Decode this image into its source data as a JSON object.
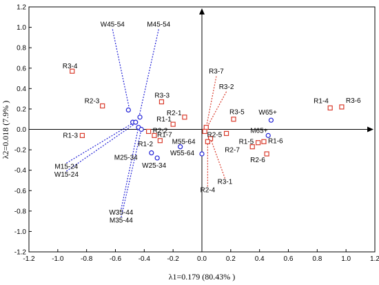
{
  "chart_data": {
    "type": "scatter",
    "title": "",
    "xlabel": "λ1=0.179 (80.43% )",
    "ylabel": "λ2=0.018 (7.9% )",
    "xlim": [
      -1.2,
      1.2
    ],
    "ylim": [
      -1.2,
      1.2
    ],
    "x_ticks": [
      "-1.2",
      "-1.0",
      "-0.8",
      "-0.6",
      "-0.4",
      "-0.2",
      "0.0",
      "0.2",
      "0.4",
      "0.6",
      "0.8",
      "1.0",
      "1.2"
    ],
    "y_ticks": [
      "-1.2",
      "-1.0",
      "-0.8",
      "-0.6",
      "-0.4",
      "-0.2",
      "0.0",
      "0.2",
      "0.4",
      "0.6",
      "0.8",
      "1.0",
      "1.2"
    ],
    "grid": false,
    "series": [
      {
        "marker": "circle",
        "color": "#1f1fd6",
        "points": [
          {
            "label": "W45-54",
            "x": -0.51,
            "y": 0.19
          },
          {
            "label": "M45-54",
            "x": -0.43,
            "y": 0.12
          },
          {
            "label": "M15-24",
            "x": -0.48,
            "y": 0.07
          },
          {
            "label": "W15-24",
            "x": -0.46,
            "y": 0.07
          },
          {
            "label": "W35-44",
            "x": -0.44,
            "y": 0.02
          },
          {
            "label": "M35-44",
            "x": -0.42,
            "y": 0.0
          },
          {
            "label": "M25-34",
            "x": -0.35,
            "y": -0.23
          },
          {
            "label": "W25-34",
            "x": -0.31,
            "y": -0.28
          },
          {
            "label": "M55-64",
            "x": -0.15,
            "y": -0.17
          },
          {
            "label": "W55-64",
            "x": 0.0,
            "y": -0.24
          },
          {
            "label": "W65+",
            "x": 0.48,
            "y": 0.09
          },
          {
            "label": "M65+",
            "x": 0.46,
            "y": -0.06
          }
        ]
      },
      {
        "marker": "square",
        "color": "#d93a2b",
        "points": [
          {
            "label": "R3-4",
            "x": -0.9,
            "y": 0.57
          },
          {
            "label": "R2-3",
            "x": -0.69,
            "y": 0.23
          },
          {
            "label": "R1-3",
            "x": -0.83,
            "y": -0.06
          },
          {
            "label": "R3-3",
            "x": -0.28,
            "y": 0.27
          },
          {
            "label": "R2-1",
            "x": -0.12,
            "y": 0.12
          },
          {
            "label": "R1-1",
            "x": -0.2,
            "y": 0.05
          },
          {
            "label": "R2-2",
            "x": -0.37,
            "y": -0.02
          },
          {
            "label": "R1-7",
            "x": -0.33,
            "y": -0.06
          },
          {
            "label": "R1-2",
            "x": -0.29,
            "y": -0.11
          },
          {
            "label": "R3-7",
            "x": 0.03,
            "y": 0.02
          },
          {
            "label": "R3-2",
            "x": 0.02,
            "y": -0.02
          },
          {
            "label": "R3-5",
            "x": 0.22,
            "y": 0.1
          },
          {
            "label": "R2-5",
            "x": 0.17,
            "y": -0.04
          },
          {
            "label": "R3-1",
            "x": 0.06,
            "y": -0.09
          },
          {
            "label": "R2-4",
            "x": 0.04,
            "y": -0.12
          },
          {
            "label": "R2-7",
            "x": 0.35,
            "y": -0.17
          },
          {
            "label": "R1-5",
            "x": 0.39,
            "y": -0.13
          },
          {
            "label": "R1-6",
            "x": 0.43,
            "y": -0.12
          },
          {
            "label": "R2-6",
            "x": 0.45,
            "y": -0.24
          },
          {
            "label": "R1-4",
            "x": 0.89,
            "y": 0.21
          },
          {
            "label": "R3-6",
            "x": 0.97,
            "y": 0.22
          }
        ]
      }
    ],
    "annotations": [
      {
        "text": "W45-54",
        "x": -0.62,
        "y": 0.98,
        "line_to": {
          "x": -0.5,
          "y": 0.18
        },
        "color": "#1f1fd6"
      },
      {
        "text": "M45-54",
        "x": -0.3,
        "y": 0.98,
        "line_to": {
          "x": -0.44,
          "y": 0.1
        },
        "color": "#1f1fd6"
      },
      {
        "text": "M15-24",
        "x": -0.94,
        "y": -0.33,
        "line_to": {
          "x": -0.48,
          "y": 0.06
        },
        "color": "#1f1fd6"
      },
      {
        "text": "W15-24",
        "x": -0.94,
        "y": -0.41,
        "line_to": {
          "x": -0.46,
          "y": 0.06
        },
        "color": "#1f1fd6"
      },
      {
        "text": "W35-44",
        "x": -0.56,
        "y": -0.78,
        "line_to": {
          "x": -0.44,
          "y": 0.02
        },
        "color": "#1f1fd6"
      },
      {
        "text": "M35-44",
        "x": -0.56,
        "y": -0.86,
        "line_to": {
          "x": -0.42,
          "y": 0.0
        },
        "color": "#1f1fd6"
      },
      {
        "text": "R3-7",
        "x": 0.1,
        "y": 0.52,
        "line_to": {
          "x": 0.03,
          "y": 0.02
        },
        "color": "#d93a2b"
      },
      {
        "text": "R3-2",
        "x": 0.17,
        "y": 0.37,
        "line_to": {
          "x": 0.02,
          "y": -0.02
        },
        "color": "#d93a2b"
      },
      {
        "text": "R3-1",
        "x": 0.16,
        "y": -0.48,
        "line_to": {
          "x": 0.06,
          "y": -0.09
        },
        "color": "#d93a2b"
      },
      {
        "text": "R2-4",
        "x": 0.04,
        "y": -0.56,
        "line_to": {
          "x": 0.04,
          "y": -0.12
        },
        "color": "#d93a2b"
      }
    ]
  }
}
